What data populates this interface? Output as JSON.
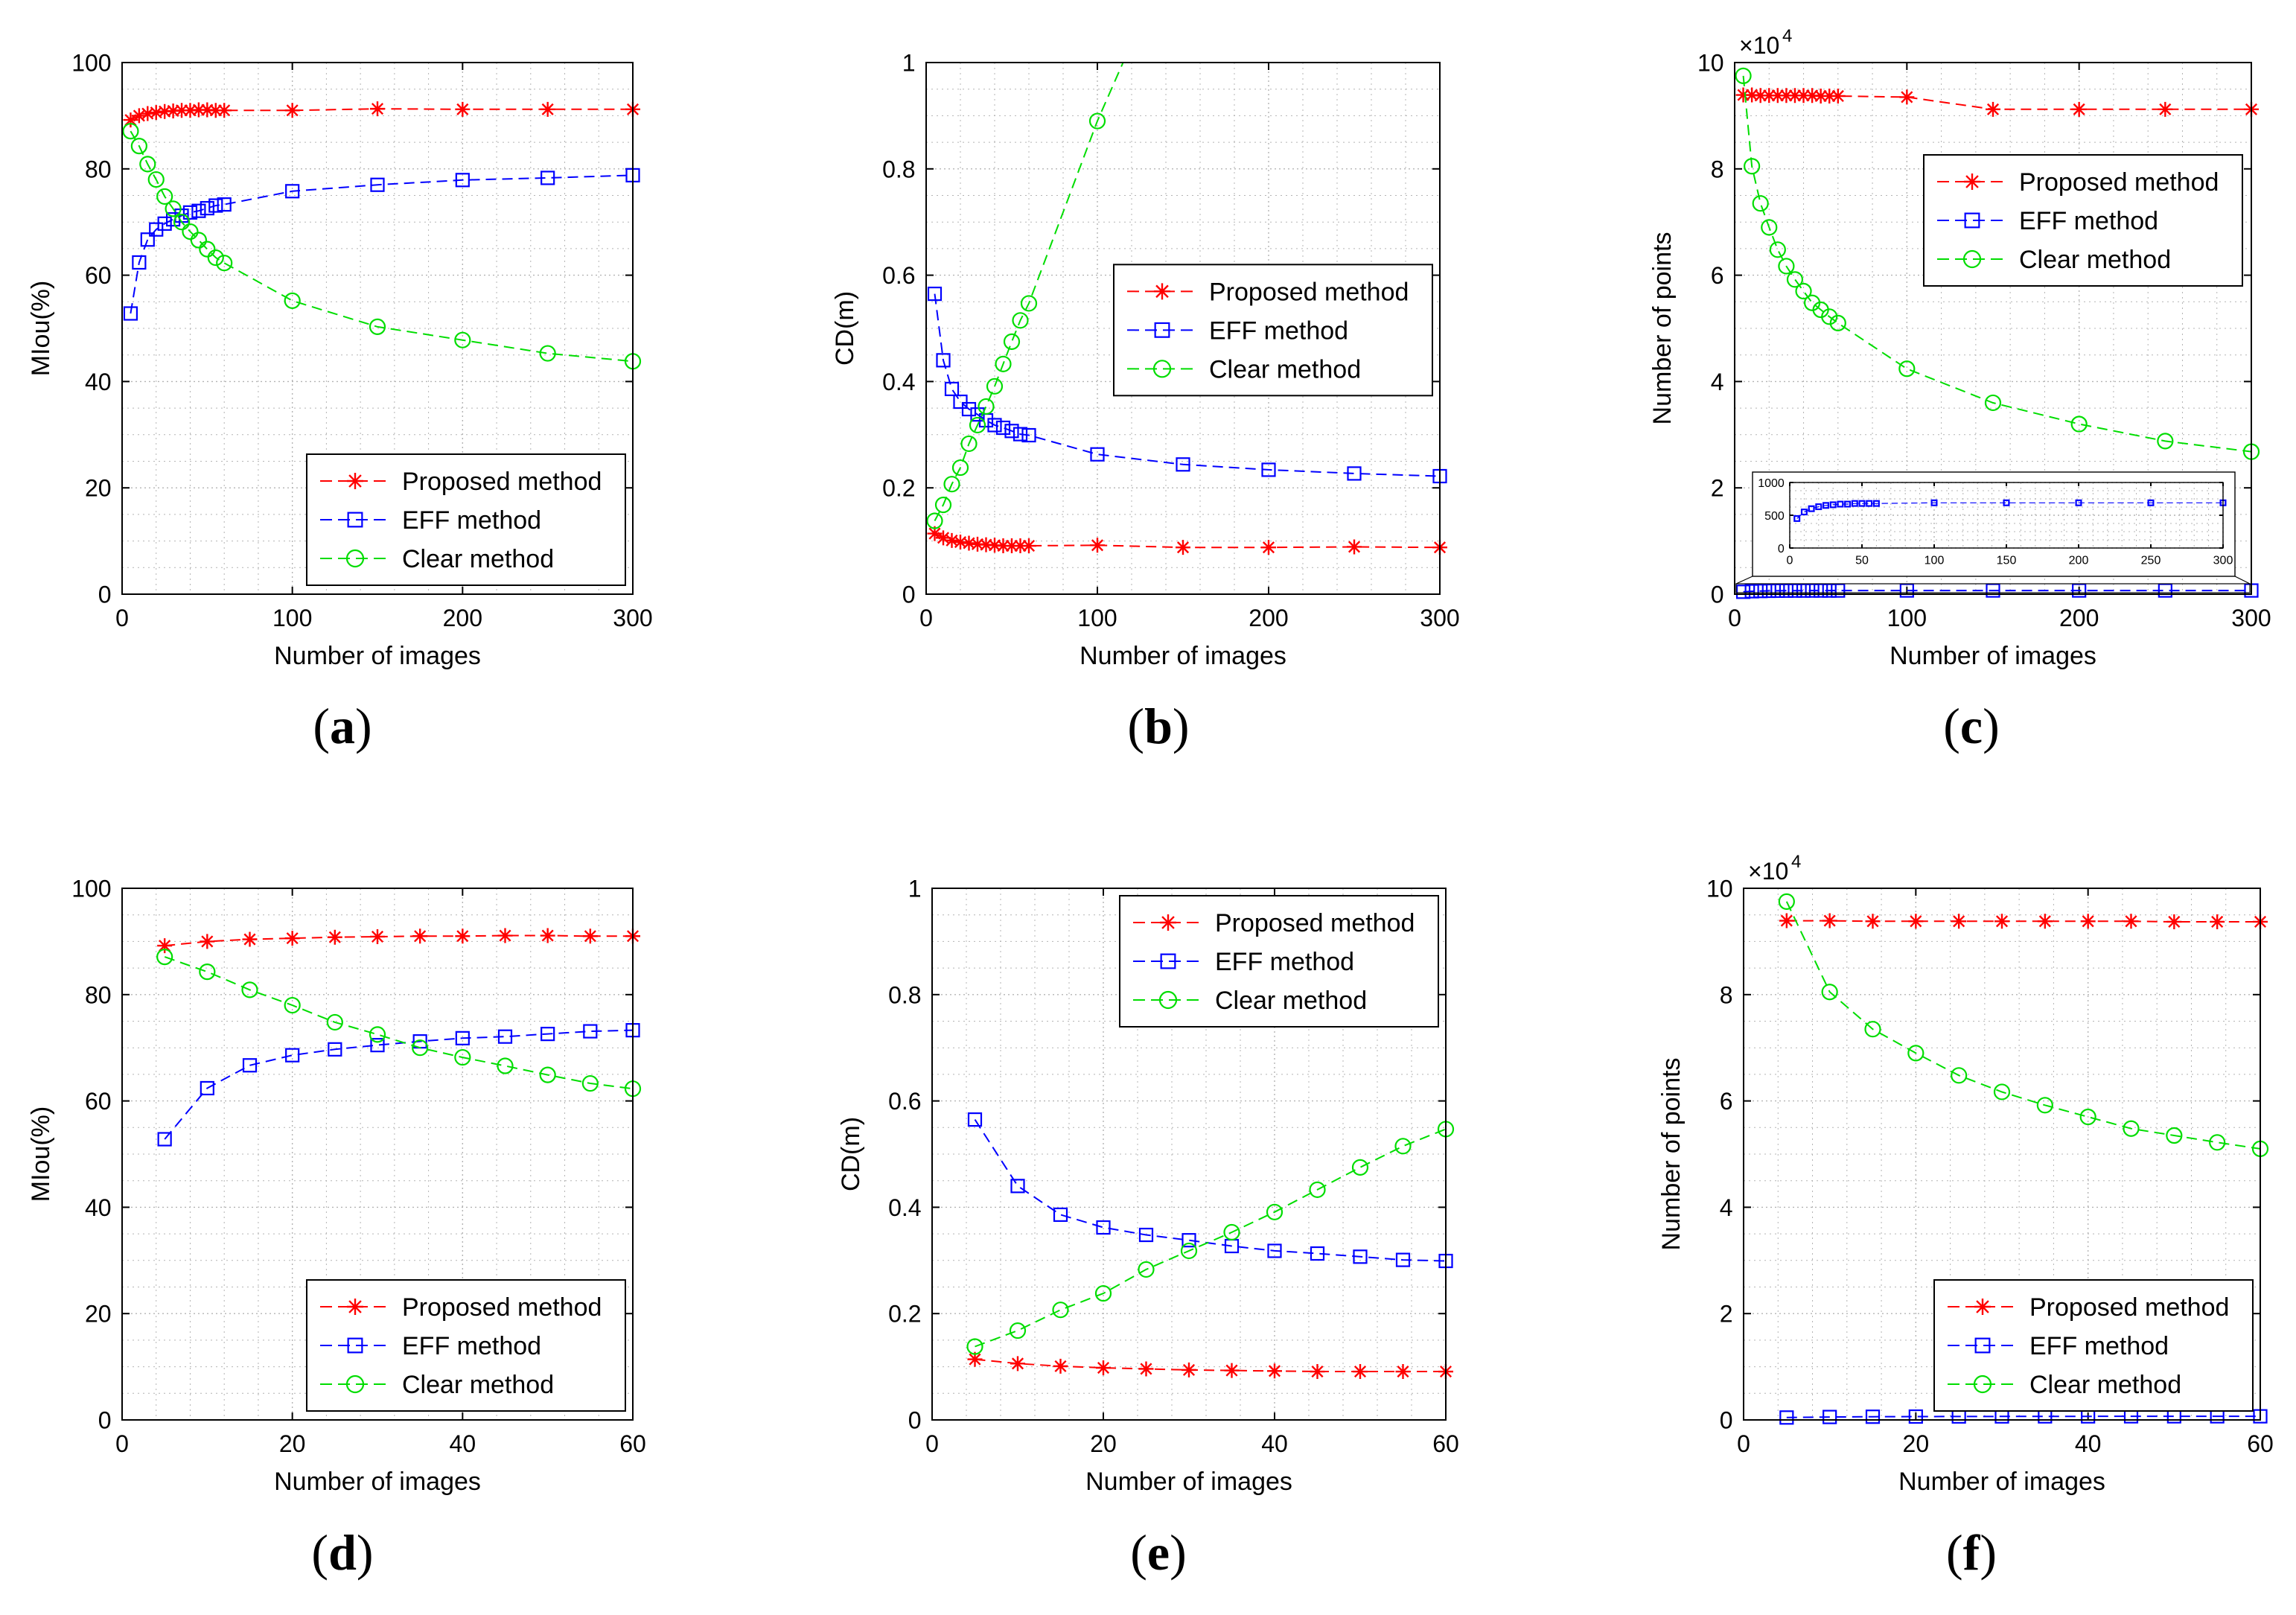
{
  "colors": {
    "proposed": "#ff0000",
    "eff": "#0000ff",
    "clear": "#00dd00",
    "axis": "#000000",
    "grid": "#b4b4b4"
  },
  "chart_data": [
    {
      "caption": "(a)",
      "type": "line",
      "xlabel": "Number of images",
      "ylabel": "MIou(%)",
      "xlim": [
        0,
        300
      ],
      "ylim": [
        0,
        100
      ],
      "xticks": [
        0,
        100,
        200,
        300
      ],
      "yticks": [
        0,
        20,
        40,
        60,
        80,
        100
      ],
      "legend_position": "bottom-right",
      "series": [
        {
          "name": "Proposed method",
          "marker": "star",
          "color": "proposed",
          "x": [
            5,
            10,
            15,
            20,
            25,
            30,
            35,
            40,
            45,
            50,
            55,
            60,
            100,
            150,
            200,
            250,
            300
          ],
          "y": [
            89.2,
            90.0,
            90.4,
            90.6,
            90.8,
            90.9,
            91.0,
            91.0,
            91.1,
            91.1,
            91.0,
            91.0,
            91.0,
            91.3,
            91.2,
            91.2,
            91.2
          ]
        },
        {
          "name": "EFF method",
          "marker": "square",
          "color": "eff",
          "x": [
            5,
            10,
            15,
            20,
            25,
            30,
            35,
            40,
            45,
            50,
            55,
            60,
            100,
            150,
            200,
            250,
            300
          ],
          "y": [
            52.8,
            62.4,
            66.7,
            68.6,
            69.7,
            70.5,
            71.2,
            71.8,
            72.1,
            72.6,
            73.1,
            73.3,
            75.8,
            77.0,
            77.9,
            78.3,
            78.8
          ]
        },
        {
          "name": "Clear method",
          "marker": "circle",
          "color": "clear",
          "x": [
            5,
            10,
            15,
            20,
            25,
            30,
            35,
            40,
            45,
            50,
            55,
            60,
            100,
            150,
            200,
            250,
            300
          ],
          "y": [
            87.1,
            84.3,
            80.9,
            78.0,
            74.8,
            72.5,
            70.0,
            68.2,
            66.6,
            64.9,
            63.3,
            62.3,
            55.2,
            50.3,
            47.8,
            45.3,
            43.8
          ]
        }
      ]
    },
    {
      "caption": "(b)",
      "type": "line",
      "xlabel": "Number of images",
      "ylabel": "CD(m)",
      "xlim": [
        0,
        300
      ],
      "ylim": [
        0,
        1
      ],
      "xticks": [
        0,
        100,
        200,
        300
      ],
      "yticks": [
        0,
        0.2,
        0.4,
        0.6,
        0.8,
        1
      ],
      "legend_position": "center-right",
      "series": [
        {
          "name": "Proposed method",
          "marker": "star",
          "color": "proposed",
          "x": [
            5,
            10,
            15,
            20,
            25,
            30,
            35,
            40,
            45,
            50,
            55,
            60,
            100,
            150,
            200,
            250,
            300
          ],
          "y": [
            0.114,
            0.106,
            0.101,
            0.098,
            0.096,
            0.094,
            0.093,
            0.092,
            0.091,
            0.091,
            0.091,
            0.091,
            0.092,
            0.088,
            0.088,
            0.089,
            0.088
          ]
        },
        {
          "name": "EFF method",
          "marker": "square",
          "color": "eff",
          "x": [
            5,
            10,
            15,
            20,
            25,
            30,
            35,
            40,
            45,
            50,
            55,
            60,
            100,
            150,
            200,
            250,
            300
          ],
          "y": [
            0.565,
            0.44,
            0.386,
            0.362,
            0.348,
            0.338,
            0.327,
            0.318,
            0.313,
            0.307,
            0.301,
            0.299,
            0.263,
            0.244,
            0.234,
            0.227,
            0.222
          ]
        },
        {
          "name": "Clear method",
          "marker": "circle",
          "color": "clear",
          "x": [
            5,
            10,
            15,
            20,
            25,
            30,
            35,
            40,
            45,
            50,
            55,
            60,
            100,
            115
          ],
          "y": [
            0.138,
            0.168,
            0.207,
            0.238,
            0.283,
            0.318,
            0.353,
            0.391,
            0.433,
            0.475,
            0.515,
            0.547,
            0.89,
            1.0
          ]
        }
      ]
    },
    {
      "caption": "(c)",
      "type": "line",
      "xlabel": "Number of images",
      "ylabel": "Number of points",
      "exponent_label": "×10",
      "exponent_power": "4",
      "xlim": [
        0,
        300
      ],
      "ylim": [
        0,
        10
      ],
      "xticks": [
        0,
        100,
        200,
        300
      ],
      "yticks": [
        0,
        2,
        4,
        6,
        8,
        10
      ],
      "legend_position": "top-right",
      "series": [
        {
          "name": "Proposed method",
          "marker": "star",
          "color": "proposed",
          "x": [
            5,
            10,
            15,
            20,
            25,
            30,
            35,
            40,
            45,
            50,
            55,
            60,
            100,
            150,
            200,
            250,
            300
          ],
          "y": [
            9.39,
            9.39,
            9.38,
            9.38,
            9.38,
            9.38,
            9.38,
            9.38,
            9.38,
            9.37,
            9.37,
            9.37,
            9.35,
            9.12,
            9.12,
            9.12,
            9.12
          ]
        },
        {
          "name": "EFF method",
          "marker": "square",
          "color": "eff",
          "x": [
            5,
            10,
            15,
            20,
            25,
            30,
            35,
            40,
            45,
            50,
            55,
            60,
            100,
            150,
            200,
            250,
            300
          ],
          "y": [
            0.045,
            0.055,
            0.06,
            0.063,
            0.065,
            0.066,
            0.067,
            0.067,
            0.068,
            0.068,
            0.068,
            0.068,
            0.069,
            0.069,
            0.069,
            0.069,
            0.069
          ]
        },
        {
          "name": "Clear method",
          "marker": "circle",
          "color": "clear",
          "x": [
            5,
            10,
            15,
            20,
            25,
            30,
            35,
            40,
            45,
            50,
            55,
            60,
            100,
            150,
            200,
            250,
            300
          ],
          "y": [
            9.75,
            8.05,
            7.35,
            6.9,
            6.48,
            6.17,
            5.92,
            5.7,
            5.48,
            5.35,
            5.22,
            5.1,
            4.24,
            3.6,
            3.2,
            2.88,
            2.68
          ]
        }
      ],
      "inset": {
        "xlim": [
          0,
          300
        ],
        "ylim": [
          0,
          1000
        ],
        "xticks": [
          0,
          50,
          100,
          150,
          200,
          250,
          300
        ],
        "yticks": [
          0,
          500,
          1000
        ],
        "series": [
          {
            "name": "EFF method",
            "marker": "square",
            "color": "eff",
            "x": [
              5,
              10,
              15,
              20,
              25,
              30,
              35,
              40,
              45,
              50,
              55,
              60,
              100,
              150,
              200,
              250,
              300
            ],
            "y": [
              450,
              550,
              600,
              630,
              650,
              660,
              670,
              670,
              680,
              680,
              680,
              680,
              690,
              690,
              690,
              690,
              690
            ]
          }
        ]
      }
    },
    {
      "caption": "(d)",
      "type": "line",
      "xlabel": "Number of images",
      "ylabel": "MIou(%)",
      "xlim": [
        0,
        60
      ],
      "ylim": [
        0,
        100
      ],
      "xticks": [
        0,
        20,
        40,
        60
      ],
      "yticks": [
        0,
        20,
        40,
        60,
        80,
        100
      ],
      "legend_position": "bottom-right",
      "series": [
        {
          "name": "Proposed method",
          "marker": "star",
          "color": "proposed",
          "x": [
            5,
            10,
            15,
            20,
            25,
            30,
            35,
            40,
            45,
            50,
            55,
            60
          ],
          "y": [
            89.2,
            90.0,
            90.4,
            90.6,
            90.8,
            90.9,
            91.0,
            91.0,
            91.1,
            91.1,
            91.0,
            91.0
          ]
        },
        {
          "name": "EFF method",
          "marker": "square",
          "color": "eff",
          "x": [
            5,
            10,
            15,
            20,
            25,
            30,
            35,
            40,
            45,
            50,
            55,
            60
          ],
          "y": [
            52.8,
            62.4,
            66.7,
            68.6,
            69.7,
            70.5,
            71.2,
            71.8,
            72.1,
            72.6,
            73.1,
            73.3
          ]
        },
        {
          "name": "Clear method",
          "marker": "circle",
          "color": "clear",
          "x": [
            5,
            10,
            15,
            20,
            25,
            30,
            35,
            40,
            45,
            50,
            55,
            60
          ],
          "y": [
            87.1,
            84.3,
            80.9,
            78.0,
            74.8,
            72.5,
            70.0,
            68.2,
            66.6,
            64.9,
            63.3,
            62.3
          ]
        }
      ]
    },
    {
      "caption": "(e)",
      "type": "line",
      "xlabel": "Number of images",
      "ylabel": "CD(m)",
      "xlim": [
        0,
        60
      ],
      "ylim": [
        0,
        1
      ],
      "xticks": [
        0,
        20,
        40,
        60
      ],
      "yticks": [
        0,
        0.2,
        0.4,
        0.6,
        0.8,
        1
      ],
      "legend_position": "top-right",
      "series": [
        {
          "name": "Proposed method",
          "marker": "star",
          "color": "proposed",
          "x": [
            5,
            10,
            15,
            20,
            25,
            30,
            35,
            40,
            45,
            50,
            55,
            60
          ],
          "y": [
            0.114,
            0.106,
            0.101,
            0.098,
            0.096,
            0.094,
            0.093,
            0.092,
            0.091,
            0.091,
            0.091,
            0.091
          ]
        },
        {
          "name": "EFF method",
          "marker": "square",
          "color": "eff",
          "x": [
            5,
            10,
            15,
            20,
            25,
            30,
            35,
            40,
            45,
            50,
            55,
            60
          ],
          "y": [
            0.565,
            0.44,
            0.386,
            0.362,
            0.348,
            0.338,
            0.327,
            0.318,
            0.313,
            0.307,
            0.301,
            0.299
          ]
        },
        {
          "name": "Clear method",
          "marker": "circle",
          "color": "clear",
          "x": [
            5,
            10,
            15,
            20,
            25,
            30,
            35,
            40,
            45,
            50,
            55,
            60
          ],
          "y": [
            0.138,
            0.168,
            0.207,
            0.238,
            0.283,
            0.318,
            0.353,
            0.391,
            0.433,
            0.475,
            0.515,
            0.547
          ]
        }
      ]
    },
    {
      "caption": "(f)",
      "type": "line",
      "xlabel": "Number of images",
      "ylabel": "Number of points",
      "exponent_label": "×10",
      "exponent_power": "4",
      "xlim": [
        0,
        60
      ],
      "ylim": [
        0,
        10
      ],
      "xticks": [
        0,
        20,
        40,
        60
      ],
      "yticks": [
        0,
        2,
        4,
        6,
        8,
        10
      ],
      "legend_position": "bottom-right",
      "series": [
        {
          "name": "Proposed method",
          "marker": "star",
          "color": "proposed",
          "x": [
            5,
            10,
            15,
            20,
            25,
            30,
            35,
            40,
            45,
            50,
            55,
            60
          ],
          "y": [
            9.39,
            9.39,
            9.38,
            9.38,
            9.38,
            9.38,
            9.38,
            9.38,
            9.38,
            9.37,
            9.37,
            9.37
          ]
        },
        {
          "name": "EFF method",
          "marker": "square",
          "color": "eff",
          "x": [
            5,
            10,
            15,
            20,
            25,
            30,
            35,
            40,
            45,
            50,
            55,
            60
          ],
          "y": [
            0.045,
            0.055,
            0.06,
            0.063,
            0.065,
            0.066,
            0.067,
            0.067,
            0.068,
            0.068,
            0.068,
            0.068
          ]
        },
        {
          "name": "Clear method",
          "marker": "circle",
          "color": "clear",
          "x": [
            5,
            10,
            15,
            20,
            25,
            30,
            35,
            40,
            45,
            50,
            55,
            60
          ],
          "y": [
            9.75,
            8.05,
            7.35,
            6.9,
            6.48,
            6.17,
            5.92,
            5.7,
            5.48,
            5.35,
            5.22,
            5.1
          ]
        }
      ]
    }
  ]
}
